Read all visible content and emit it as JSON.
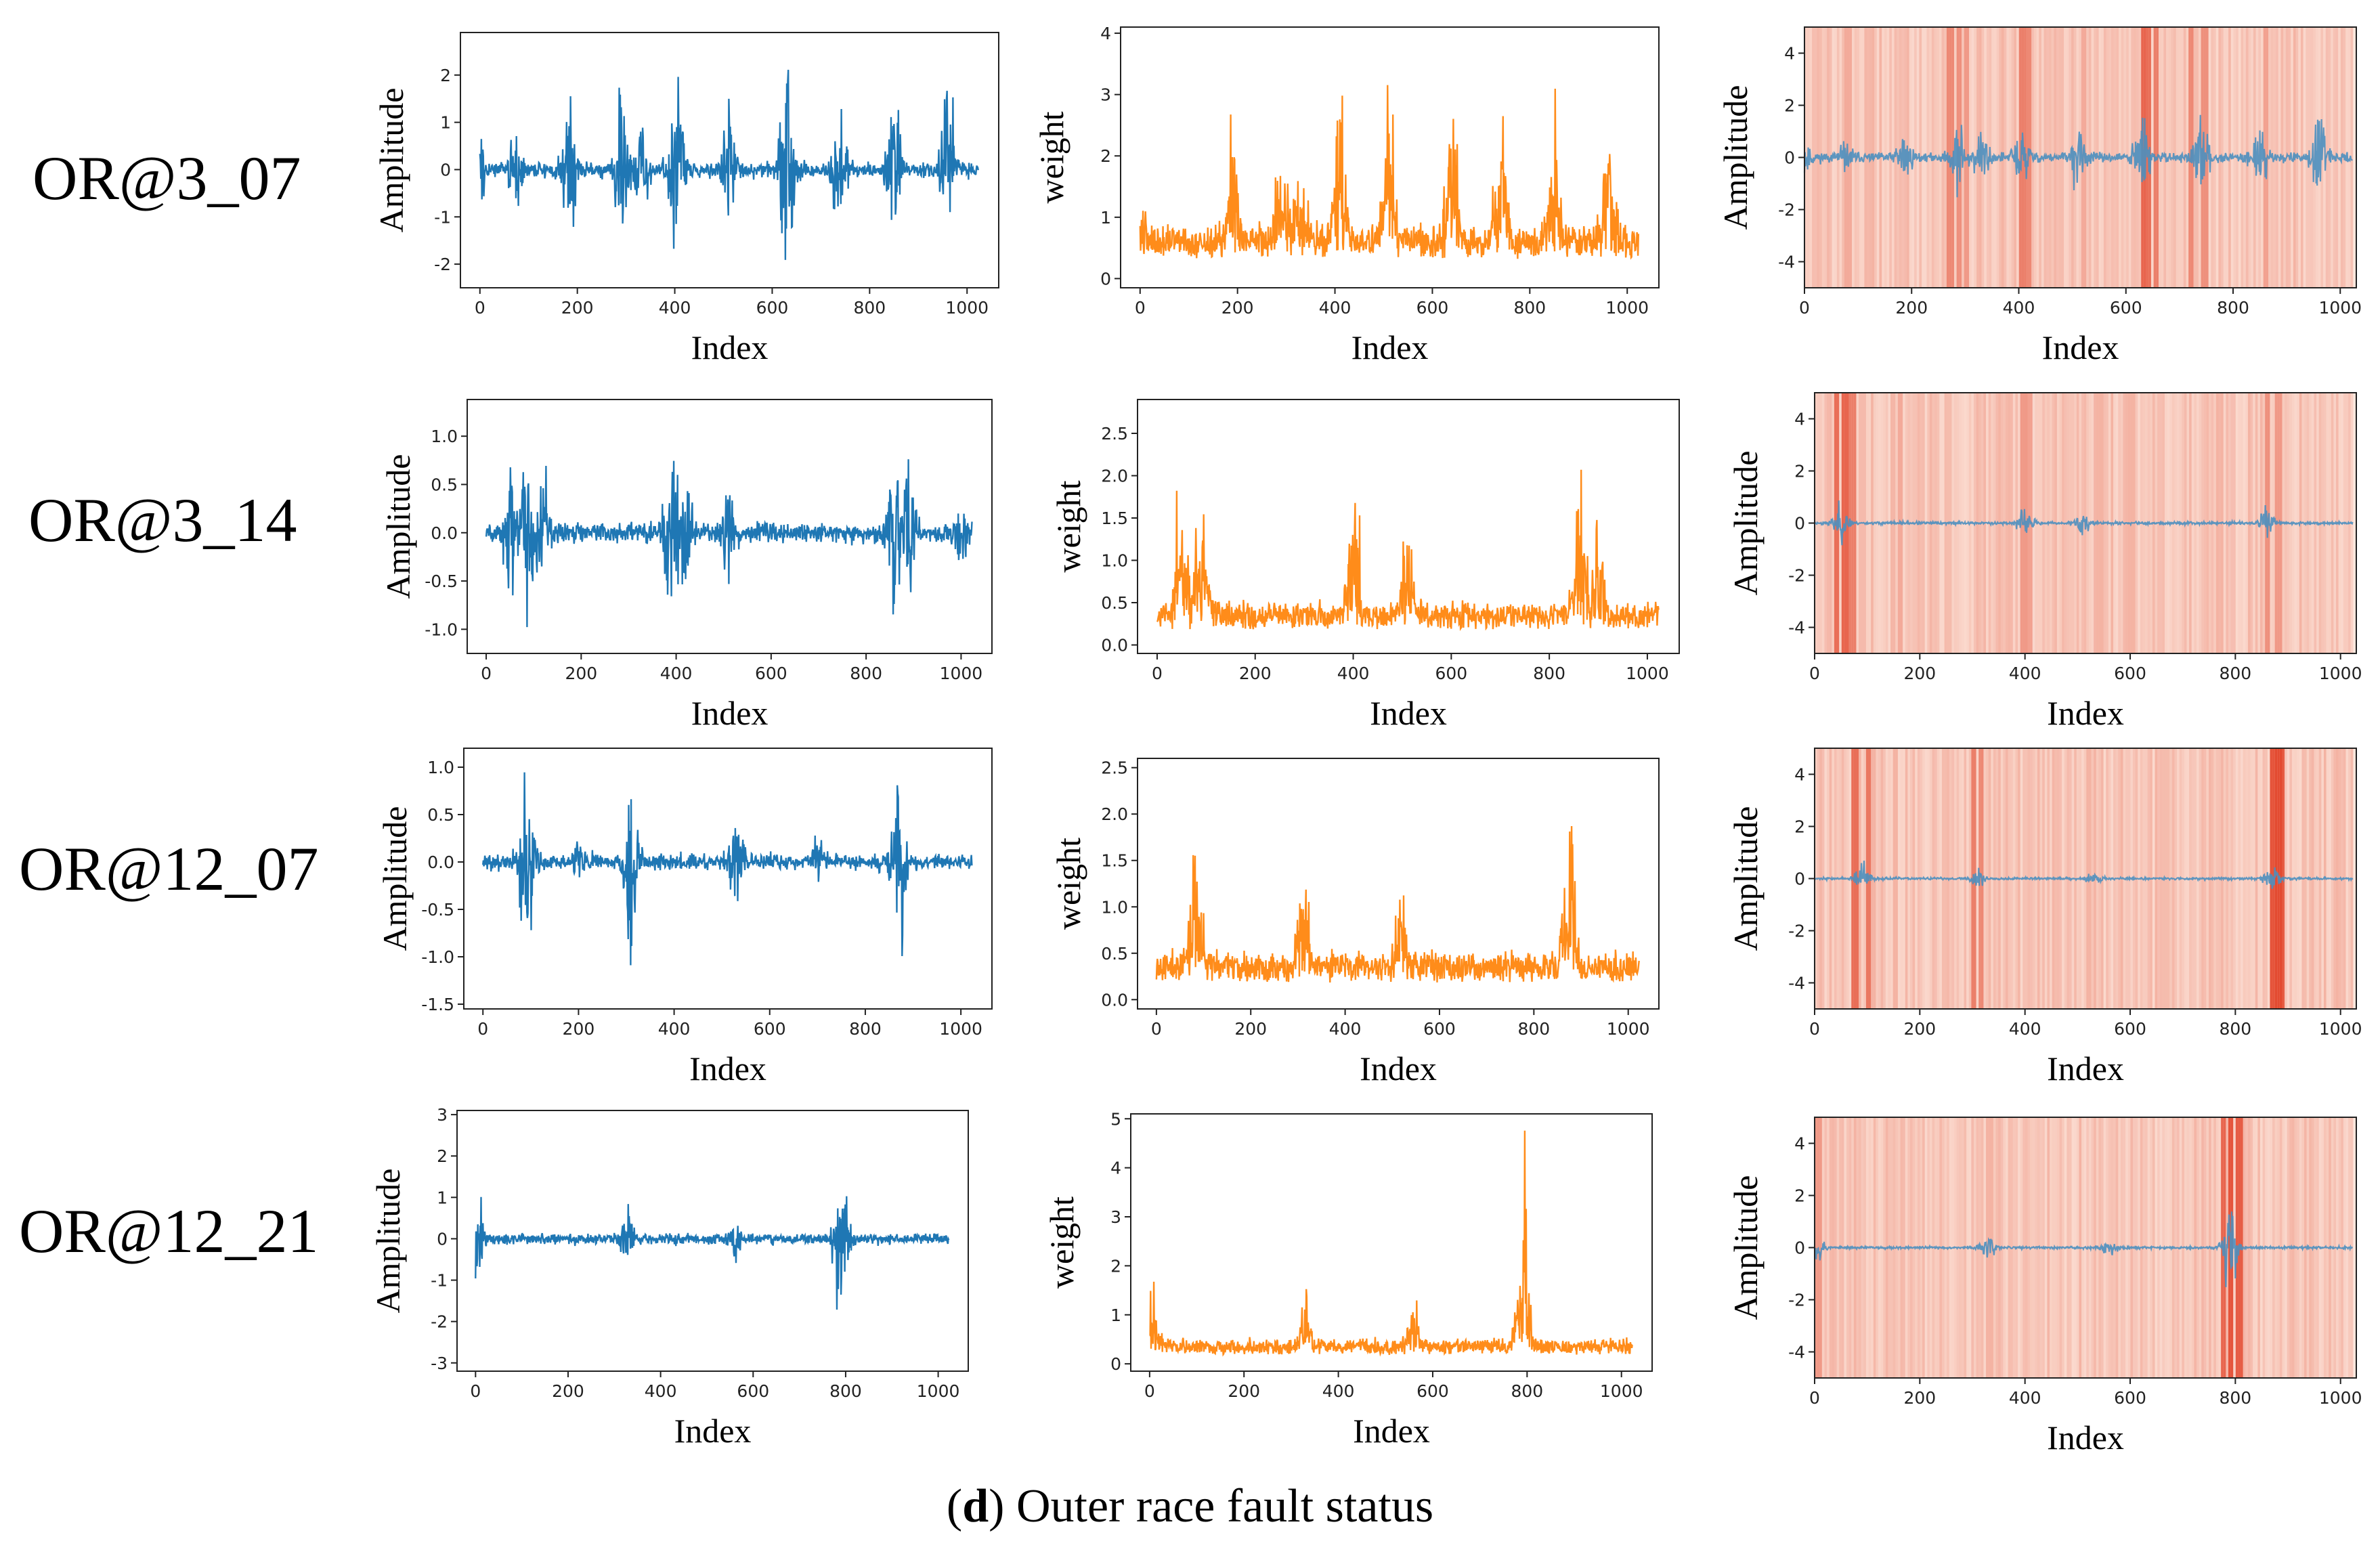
{
  "figure": {
    "caption_letter": "d",
    "caption_text": "Outer race fault status",
    "colors": {
      "signal": "#1f77b4",
      "weight": "#ff8c1a",
      "overlay_signal": "#4b8fbf",
      "heat": "#e03a1e"
    }
  },
  "rows": [
    {
      "label": "OR@3_07"
    },
    {
      "label": "OR@3_14"
    },
    {
      "label": "OR@12_07"
    },
    {
      "label": "OR@12_21"
    }
  ],
  "chart_data": [
    {
      "type": "line",
      "xlabel": "Index",
      "ylabel": "Amplitude",
      "xticks": [
        0,
        200,
        400,
        600,
        800,
        1000
      ],
      "yticks": [
        -2,
        -1,
        0,
        1,
        2
      ],
      "xlim": [
        -40,
        1065
      ],
      "ylim": [
        -2.5,
        2.9
      ],
      "color": "#1f77b4",
      "n": 1024,
      "base": 0.2,
      "bursts": [
        [
          0,
          0.9
        ],
        [
          75,
          0.8
        ],
        [
          185,
          1.5
        ],
        [
          290,
          2.1
        ],
        [
          330,
          1.6
        ],
        [
          405,
          2.3
        ],
        [
          510,
          1.6
        ],
        [
          630,
          2.7
        ],
        [
          740,
          2.0
        ],
        [
          850,
          1.7
        ],
        [
          960,
          2.1
        ]
      ]
    },
    {
      "type": "line",
      "xlabel": "Index",
      "ylabel": "weight",
      "xticks": [
        0,
        200,
        400,
        600,
        800,
        1000
      ],
      "yticks": [
        0,
        1,
        2,
        3,
        4
      ],
      "xlim": [
        -40,
        1065
      ],
      "ylim": [
        -0.15,
        4.1
      ],
      "color": "#ff8c1a",
      "n": 1024,
      "nonneg": true,
      "base": 0.3,
      "offset": 0.5,
      "bursts": [
        [
          0,
          0.6
        ],
        [
          190,
          2.4
        ],
        [
          290,
          2.2
        ],
        [
          330,
          1.7
        ],
        [
          410,
          3.7
        ],
        [
          510,
          2.6
        ],
        [
          640,
          3.8
        ],
        [
          740,
          2.9
        ],
        [
          850,
          2.3
        ],
        [
          960,
          2.6
        ]
      ]
    },
    {
      "type": "heatmap",
      "xlabel": "Index",
      "ylabel": "Amplitude",
      "xticks": [
        0,
        200,
        400,
        600,
        800,
        1000
      ],
      "yticks": [
        -4,
        -2,
        0,
        2,
        4
      ],
      "xlim": [
        0,
        1030
      ],
      "ylim": [
        -5,
        5
      ],
      "signal_color": "#4b8fbf",
      "n": 1024,
      "base": 0.25,
      "scale": 0.85,
      "seed": 11,
      "bursts": [
        [
          0,
          0.7
        ],
        [
          75,
          0.6
        ],
        [
          185,
          1.3
        ],
        [
          290,
          1.8
        ],
        [
          330,
          1.4
        ],
        [
          405,
          2.0
        ],
        [
          510,
          1.4
        ],
        [
          630,
          2.4
        ],
        [
          740,
          1.8
        ],
        [
          850,
          1.5
        ],
        [
          960,
          1.8
        ]
      ],
      "stripes": [
        [
          270,
          0.55
        ],
        [
          285,
          0.5
        ],
        [
          300,
          0.45
        ],
        [
          405,
          0.6
        ],
        [
          415,
          0.55
        ],
        [
          630,
          0.75
        ],
        [
          640,
          0.7
        ],
        [
          655,
          0.6
        ],
        [
          745,
          0.5
        ],
        [
          860,
          0.4
        ],
        [
          720,
          0.55
        ],
        [
          80,
          0.35
        ],
        [
          520,
          0.35
        ]
      ]
    },
    {
      "type": "line",
      "xlabel": "Index",
      "ylabel": "Amplitude",
      "xticks": [
        0,
        200,
        400,
        600,
        800,
        1000
      ],
      "yticks": [
        -1.0,
        -0.5,
        0.0,
        0.5,
        1.0
      ],
      "xlim": [
        -40,
        1065
      ],
      "ylim": [
        -1.25,
        1.38
      ],
      "color": "#1f77b4",
      "n": 1024,
      "base": 0.12,
      "bursts": [
        [
          50,
          1.2
        ],
        [
          85,
          0.9
        ],
        [
          120,
          0.6
        ],
        [
          390,
          1.0
        ],
        [
          420,
          0.7
        ],
        [
          510,
          0.5
        ],
        [
          860,
          1.1
        ],
        [
          890,
          0.8
        ],
        [
          1000,
          0.3
        ]
      ]
    },
    {
      "type": "line",
      "xlabel": "Index",
      "ylabel": "weight",
      "xticks": [
        0,
        200,
        400,
        600,
        800,
        1000
      ],
      "yticks": [
        0.0,
        0.5,
        1.0,
        1.5,
        2.0,
        2.5
      ],
      "xlim": [
        -40,
        1065
      ],
      "ylim": [
        -0.1,
        2.9
      ],
      "color": "#ff8c1a",
      "n": 1024,
      "nonneg": true,
      "base": 0.15,
      "offset": 0.3,
      "bursts": [
        [
          50,
          2.6
        ],
        [
          90,
          1.6
        ],
        [
          400,
          1.8
        ],
        [
          510,
          1.3
        ],
        [
          860,
          2.0
        ],
        [
          900,
          1.2
        ]
      ]
    },
    {
      "type": "heatmap",
      "xlabel": "Index",
      "ylabel": "Amplitude",
      "xticks": [
        0,
        200,
        400,
        600,
        800,
        1000
      ],
      "yticks": [
        -4,
        -2,
        0,
        2,
        4
      ],
      "xlim": [
        0,
        1030
      ],
      "ylim": [
        -5,
        5
      ],
      "signal_color": "#4b8fbf",
      "n": 1024,
      "base": 0.08,
      "scale": 0.8,
      "seed": 23,
      "bursts": [
        [
          50,
          1.0
        ],
        [
          400,
          0.8
        ],
        [
          510,
          0.6
        ],
        [
          860,
          0.9
        ]
      ],
      "stripes": [
        [
          40,
          0.7
        ],
        [
          55,
          0.75
        ],
        [
          70,
          0.6
        ],
        [
          160,
          0.35
        ],
        [
          395,
          0.45
        ],
        [
          405,
          0.4
        ],
        [
          860,
          0.5
        ],
        [
          880,
          0.45
        ],
        [
          540,
          0.3
        ],
        [
          600,
          0.3
        ]
      ]
    },
    {
      "type": "line",
      "xlabel": "Index",
      "ylabel": "Amplitude",
      "xticks": [
        0,
        200,
        400,
        600,
        800,
        1000
      ],
      "yticks": [
        -1.5,
        -1.0,
        -0.5,
        0.0,
        0.5,
        1.0
      ],
      "xlim": [
        -40,
        1065
      ],
      "ylim": [
        -1.55,
        1.2
      ],
      "color": "#1f77b4",
      "n": 1024,
      "base": 0.1,
      "bursts": [
        [
          90,
          1.3
        ],
        [
          310,
          1.1
        ],
        [
          530,
          0.6
        ],
        [
          870,
          1.3
        ],
        [
          200,
          0.25
        ],
        [
          700,
          0.25
        ]
      ]
    },
    {
      "type": "line",
      "xlabel": "Index",
      "ylabel": "weight",
      "xticks": [
        0,
        200,
        400,
        600,
        800,
        1000
      ],
      "yticks": [
        0.0,
        0.5,
        1.0,
        1.5,
        2.0,
        2.5
      ],
      "xlim": [
        -40,
        1065
      ],
      "ylim": [
        -0.1,
        2.6
      ],
      "color": "#ff8c1a",
      "n": 1024,
      "nonneg": true,
      "base": 0.15,
      "offset": 0.3,
      "bursts": [
        [
          85,
          2.2
        ],
        [
          310,
          1.3
        ],
        [
          520,
          1.0
        ],
        [
          875,
          2.1
        ]
      ]
    },
    {
      "type": "heatmap",
      "xlabel": "Index",
      "ylabel": "Amplitude",
      "xticks": [
        0,
        200,
        400,
        600,
        800,
        1000
      ],
      "yticks": [
        -4,
        -2,
        0,
        2,
        4
      ],
      "xlim": [
        0,
        1030
      ],
      "ylim": [
        -5,
        5
      ],
      "signal_color": "#4b8fbf",
      "n": 1024,
      "base": 0.07,
      "scale": 0.75,
      "seed": 37,
      "bursts": [
        [
          90,
          0.9
        ],
        [
          310,
          0.7
        ],
        [
          530,
          0.4
        ],
        [
          870,
          0.9
        ]
      ],
      "stripes": [
        [
          75,
          0.7
        ],
        [
          100,
          0.65
        ],
        [
          300,
          0.6
        ],
        [
          315,
          0.55
        ],
        [
          870,
          0.85
        ],
        [
          880,
          0.9
        ],
        [
          885,
          0.8
        ],
        [
          150,
          0.3
        ],
        [
          520,
          0.3
        ]
      ]
    },
    {
      "type": "line",
      "xlabel": "Index",
      "ylabel": "Amplitude",
      "xticks": [
        0,
        200,
        400,
        600,
        800,
        1000
      ],
      "yticks": [
        -3,
        -2,
        -1,
        0,
        1,
        2,
        3
      ],
      "xlim": [
        -40,
        1065
      ],
      "ylim": [
        -3.2,
        3.1
      ],
      "color": "#1f77b4",
      "n": 1024,
      "base": 0.15,
      "bursts": [
        [
          5,
          1.0
        ],
        [
          330,
          0.7
        ],
        [
          560,
          0.5
        ],
        [
          790,
          2.8
        ]
      ]
    },
    {
      "type": "line",
      "xlabel": "Index",
      "ylabel": "weight",
      "xticks": [
        0,
        200,
        400,
        600,
        800,
        1000
      ],
      "yticks": [
        0,
        1,
        2,
        3,
        4,
        5
      ],
      "xlim": [
        -40,
        1065
      ],
      "ylim": [
        -0.15,
        5.1
      ],
      "color": "#ff8c1a",
      "n": 1024,
      "nonneg": true,
      "base": 0.15,
      "offset": 0.3,
      "bursts": [
        [
          5,
          1.7
        ],
        [
          330,
          1.1
        ],
        [
          560,
          1.0
        ],
        [
          790,
          4.6
        ]
      ]
    },
    {
      "type": "heatmap",
      "xlabel": "Index",
      "ylabel": "Amplitude",
      "xticks": [
        0,
        200,
        400,
        600,
        800,
        1000
      ],
      "yticks": [
        -4,
        -2,
        0,
        2,
        4
      ],
      "xlim": [
        0,
        1030
      ],
      "ylim": [
        -5,
        5
      ],
      "signal_color": "#4b8fbf",
      "n": 1024,
      "base": 0.07,
      "scale": 0.8,
      "seed": 53,
      "bursts": [
        [
          5,
          0.8
        ],
        [
          330,
          0.6
        ],
        [
          560,
          0.4
        ],
        [
          790,
          2.4
        ]
      ],
      "stripes": [
        [
          775,
          0.75
        ],
        [
          790,
          0.85
        ],
        [
          805,
          0.8
        ],
        [
          5,
          0.45
        ],
        [
          330,
          0.3
        ]
      ]
    }
  ]
}
